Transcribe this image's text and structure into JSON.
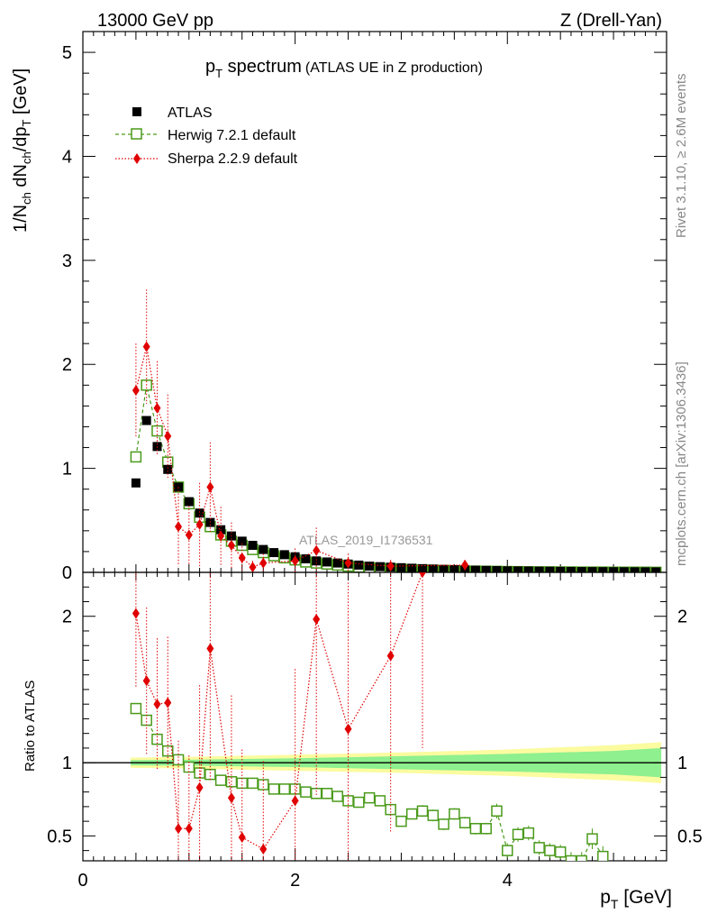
{
  "header": {
    "left": "13000 GeV pp",
    "right": "Z (Drell-Yan)"
  },
  "title": {
    "main": "p",
    "main_sub": "T",
    "main_rest": " spectrum",
    "paren": "(ATLAS UE in Z production)"
  },
  "side_text": {
    "rivet": "Rivet 3.1.10, ≥ 2.6M events",
    "mcplots": "mcplots.cern.ch [arXiv:1306.3436]"
  },
  "watermark": "ATLAS_2019_I1736531",
  "x_axis": {
    "label": "p",
    "label_sub": "T",
    "label_rest": " [GeV]"
  },
  "y_axis_main": {
    "label": "1/N",
    "sub1": "ch",
    "mid": " dN",
    "sub2": "ch",
    "mid2": "/dp",
    "sub3": "T",
    "rest": " [GeV]"
  },
  "y_axis_ratio": {
    "label": "Ratio to ATLAS"
  },
  "legend": [
    {
      "name": "ATLAS",
      "color": "#000000",
      "marker": "filled-square"
    },
    {
      "name": "Herwig 7.2.1 default",
      "color": "#4a9a1a",
      "marker": "open-square"
    },
    {
      "name": "Sherpa 2.2.9 default",
      "color": "#e00000",
      "marker": "filled-diamond"
    }
  ],
  "chart_data": [
    {
      "type": "scatter",
      "panel": "main",
      "xlim": [
        0,
        5.5
      ],
      "ylim": [
        0,
        5.2
      ],
      "xticks": [
        0,
        2,
        4
      ],
      "yticks": [
        0,
        1,
        2,
        3,
        4,
        5
      ],
      "series": [
        {
          "name": "ATLAS",
          "color": "#000000",
          "x": [
            0.5,
            0.6,
            0.7,
            0.8,
            0.9,
            1.0,
            1.1,
            1.2,
            1.3,
            1.4,
            1.5,
            1.6,
            1.7,
            1.8,
            1.9,
            2.0,
            2.1,
            2.2,
            2.3,
            2.4,
            2.5,
            2.6,
            2.7,
            2.8,
            2.9,
            3.0,
            3.1,
            3.2,
            3.3,
            3.4,
            3.5,
            3.6,
            3.7,
            3.8,
            3.9,
            4.0,
            4.1,
            4.2,
            4.3,
            4.4,
            4.5,
            4.6,
            4.7,
            4.8,
            4.9,
            5.0,
            5.1,
            5.2,
            5.3,
            5.4
          ],
          "y": [
            0.86,
            1.46,
            1.21,
            0.99,
            0.82,
            0.68,
            0.57,
            0.48,
            0.41,
            0.35,
            0.3,
            0.26,
            0.22,
            0.19,
            0.17,
            0.15,
            0.13,
            0.11,
            0.1,
            0.09,
            0.08,
            0.07,
            0.06,
            0.055,
            0.05,
            0.045,
            0.04,
            0.036,
            0.032,
            0.029,
            0.026,
            0.023,
            0.021,
            0.019,
            0.017,
            0.015,
            0.014,
            0.013,
            0.012,
            0.011,
            0.01,
            0.009,
            0.008,
            0.0075,
            0.007,
            0.0065,
            0.006,
            0.0055,
            0.005,
            0.0045
          ]
        },
        {
          "name": "Herwig 7.2.1 default",
          "color": "#4a9a1a",
          "x": [
            0.5,
            0.6,
            0.7,
            0.8,
            0.9,
            1.0,
            1.1,
            1.2,
            1.3,
            1.4,
            1.5,
            1.6,
            1.7,
            1.8,
            1.9,
            2.0,
            2.1,
            2.2,
            2.3,
            2.4,
            2.5,
            2.6,
            2.7,
            2.8,
            2.9,
            3.0,
            3.1,
            3.2,
            3.3,
            3.4,
            3.5,
            3.6,
            3.7,
            3.8,
            3.9,
            4.0,
            4.1,
            4.2,
            4.3,
            4.4,
            4.5,
            4.6,
            4.7,
            4.8,
            4.9,
            5.0,
            5.1,
            5.2,
            5.3,
            5.4
          ],
          "y": [
            1.11,
            1.8,
            1.36,
            1.06,
            0.82,
            0.66,
            0.53,
            0.44,
            0.36,
            0.3,
            0.26,
            0.22,
            0.19,
            0.16,
            0.14,
            0.12,
            0.1,
            0.09,
            0.08,
            0.07,
            0.06,
            0.05,
            0.045,
            0.04,
            0.035,
            0.03,
            0.026,
            0.024,
            0.021,
            0.018,
            0.016,
            0.013,
            0.012,
            0.011,
            0.01,
            0.008,
            0.007,
            0.006,
            0.005,
            0.005,
            0.004,
            0.004,
            0.003,
            0.003,
            0.003,
            0.002,
            0.002,
            0.002,
            0.002,
            0.001
          ]
        },
        {
          "name": "Sherpa 2.2.9 default",
          "color": "#e00000",
          "x": [
            0.5,
            0.6,
            0.7,
            0.8,
            0.9,
            1.0,
            1.1,
            1.2,
            1.3,
            1.4,
            1.5,
            1.6,
            1.7,
            2.0,
            2.2,
            2.5,
            2.9,
            3.6
          ],
          "y": [
            1.75,
            2.17,
            1.58,
            1.31,
            0.44,
            0.36,
            0.46,
            0.82,
            0.35,
            0.26,
            0.14,
            0.05,
            0.09,
            0.11,
            0.21,
            0.09,
            0.06,
            0.07
          ],
          "yerr": [
            0.45,
            0.55,
            0.45,
            0.4,
            0.38,
            0.28,
            0.4,
            0.43,
            0.28,
            0.22,
            0.14,
            0.06,
            0.09,
            0.12,
            0.22,
            0.09,
            0.06,
            0.05
          ]
        }
      ]
    },
    {
      "type": "scatter",
      "panel": "ratio",
      "xlim": [
        0,
        5.5
      ],
      "ylim": [
        0.33,
        2.3
      ],
      "yticks": [
        0.5,
        1,
        2
      ],
      "ylabel": "Ratio to ATLAS",
      "xlabel": "pT [GeV]",
      "band": {
        "x": [
          0.45,
          1.0,
          2.0,
          3.0,
          4.0,
          5.0,
          5.45
        ],
        "green_half": [
          0.018,
          0.02,
          0.03,
          0.045,
          0.06,
          0.08,
          0.1
        ],
        "yellow_half": [
          0.035,
          0.04,
          0.055,
          0.07,
          0.09,
          0.12,
          0.14
        ]
      },
      "series": [
        {
          "name": "Herwig 7.2.1 default",
          "color": "#4a9a1a",
          "x": [
            0.5,
            0.6,
            0.7,
            0.8,
            0.9,
            1.0,
            1.1,
            1.2,
            1.3,
            1.4,
            1.5,
            1.6,
            1.7,
            1.8,
            1.9,
            2.0,
            2.1,
            2.2,
            2.3,
            2.4,
            2.5,
            2.6,
            2.7,
            2.8,
            2.9,
            3.0,
            3.1,
            3.2,
            3.3,
            3.4,
            3.5,
            3.6,
            3.7,
            3.8,
            3.9,
            4.0,
            4.1,
            4.2,
            4.3,
            4.4,
            4.5,
            4.6,
            4.7,
            4.8,
            4.9
          ],
          "y": [
            1.37,
            1.29,
            1.16,
            1.08,
            1.02,
            0.97,
            0.93,
            0.92,
            0.88,
            0.87,
            0.86,
            0.86,
            0.85,
            0.82,
            0.82,
            0.82,
            0.8,
            0.79,
            0.79,
            0.77,
            0.74,
            0.73,
            0.76,
            0.74,
            0.68,
            0.6,
            0.65,
            0.67,
            0.64,
            0.58,
            0.65,
            0.59,
            0.55,
            0.55,
            0.67,
            0.4,
            0.51,
            0.52,
            0.42,
            0.4,
            0.39,
            0.33,
            0.33,
            0.48,
            0.36
          ],
          "yerr": [
            0.02,
            0.02,
            0.02,
            0.02,
            0.02,
            0.02,
            0.02,
            0.02,
            0.02,
            0.02,
            0.02,
            0.02,
            0.02,
            0.02,
            0.02,
            0.02,
            0.02,
            0.02,
            0.02,
            0.02,
            0.02,
            0.02,
            0.02,
            0.02,
            0.03,
            0.03,
            0.03,
            0.04,
            0.04,
            0.04,
            0.04,
            0.04,
            0.04,
            0.04,
            0.05,
            0.05,
            0.05,
            0.05,
            0.05,
            0.05,
            0.05,
            0.06,
            0.06,
            0.07,
            0.07
          ]
        },
        {
          "name": "Sherpa 2.2.9 default",
          "color": "#e00000",
          "x": [
            0.5,
            0.6,
            0.7,
            0.8,
            0.9,
            1.0,
            1.1,
            1.2,
            1.4,
            1.5,
            1.7,
            2.0,
            2.2,
            2.5,
            2.9,
            3.2
          ],
          "y": [
            2.02,
            1.56,
            1.4,
            1.41,
            0.55,
            0.55,
            0.83,
            1.78,
            0.76,
            0.49,
            0.41,
            0.74,
            1.98,
            1.23,
            1.73,
            2.3
          ],
          "yerr": [
            0.5,
            0.5,
            0.45,
            0.45,
            0.6,
            0.5,
            0.7,
            0.9,
            0.7,
            0.6,
            0.6,
            0.9,
            1.2,
            1.0,
            1.2,
            1.2
          ]
        }
      ]
    }
  ]
}
